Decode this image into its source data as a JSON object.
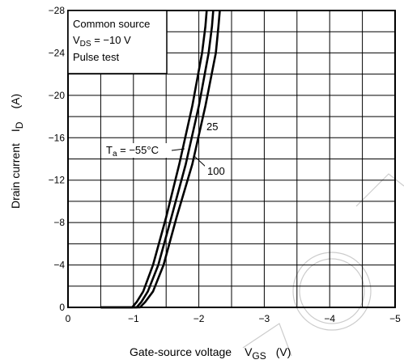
{
  "chart_data": {
    "type": "line",
    "title": "",
    "xlabel_main": "Gate-source voltage",
    "xlabel_sym": "V",
    "xlabel_sub": "GS",
    "xlabel_unit": "(V)",
    "ylabel_main": "Drain current",
    "ylabel_sym": "I",
    "ylabel_sub": "D",
    "ylabel_unit": "(A)",
    "xlim": [
      0,
      -5
    ],
    "ylim": [
      0,
      -28
    ],
    "x_ticks": [
      "0",
      "−1",
      "−2",
      "−3",
      "−4",
      "−5"
    ],
    "y_ticks": [
      "0",
      "−4",
      "−8",
      "−12",
      "−16",
      "−20",
      "−24",
      "−28"
    ],
    "grid": true,
    "conditions": [
      "Common source",
      "V",
      "DS",
      " = −10 V",
      "Pulse test"
    ],
    "annotations": {
      "ta_main": "T",
      "ta_sub": "a",
      "ta_rest": " = −55°C",
      "label_25": "25",
      "label_100": "100"
    },
    "series": [
      {
        "label": "Ta = −55°C",
        "x": [
          -0.5,
          -0.98,
          -1.05,
          -1.15,
          -1.3,
          -1.5,
          -1.7,
          -1.9,
          -2.05,
          -2.1,
          -2.12
        ],
        "y": [
          0,
          0,
          -0.5,
          -1.5,
          -4,
          -8.5,
          -13.5,
          -19,
          -24,
          -26.5,
          -28
        ]
      },
      {
        "label": "25",
        "x": [
          -0.5,
          -1.05,
          -1.12,
          -1.22,
          -1.38,
          -1.58,
          -1.8,
          -2.0,
          -2.15,
          -2.2,
          -2.22
        ],
        "y": [
          0,
          0,
          -0.5,
          -1.5,
          -4,
          -8.5,
          -13.5,
          -19,
          -24,
          -26.5,
          -28
        ]
      },
      {
        "label": "100",
        "x": [
          -0.5,
          -1.1,
          -1.18,
          -1.3,
          -1.46,
          -1.66,
          -1.9,
          -2.1,
          -2.26,
          -2.3,
          -2.32
        ],
        "y": [
          0,
          0,
          -0.5,
          -1.5,
          -4,
          -8.5,
          -13.5,
          -19,
          -24,
          -26.5,
          -28
        ]
      }
    ]
  }
}
